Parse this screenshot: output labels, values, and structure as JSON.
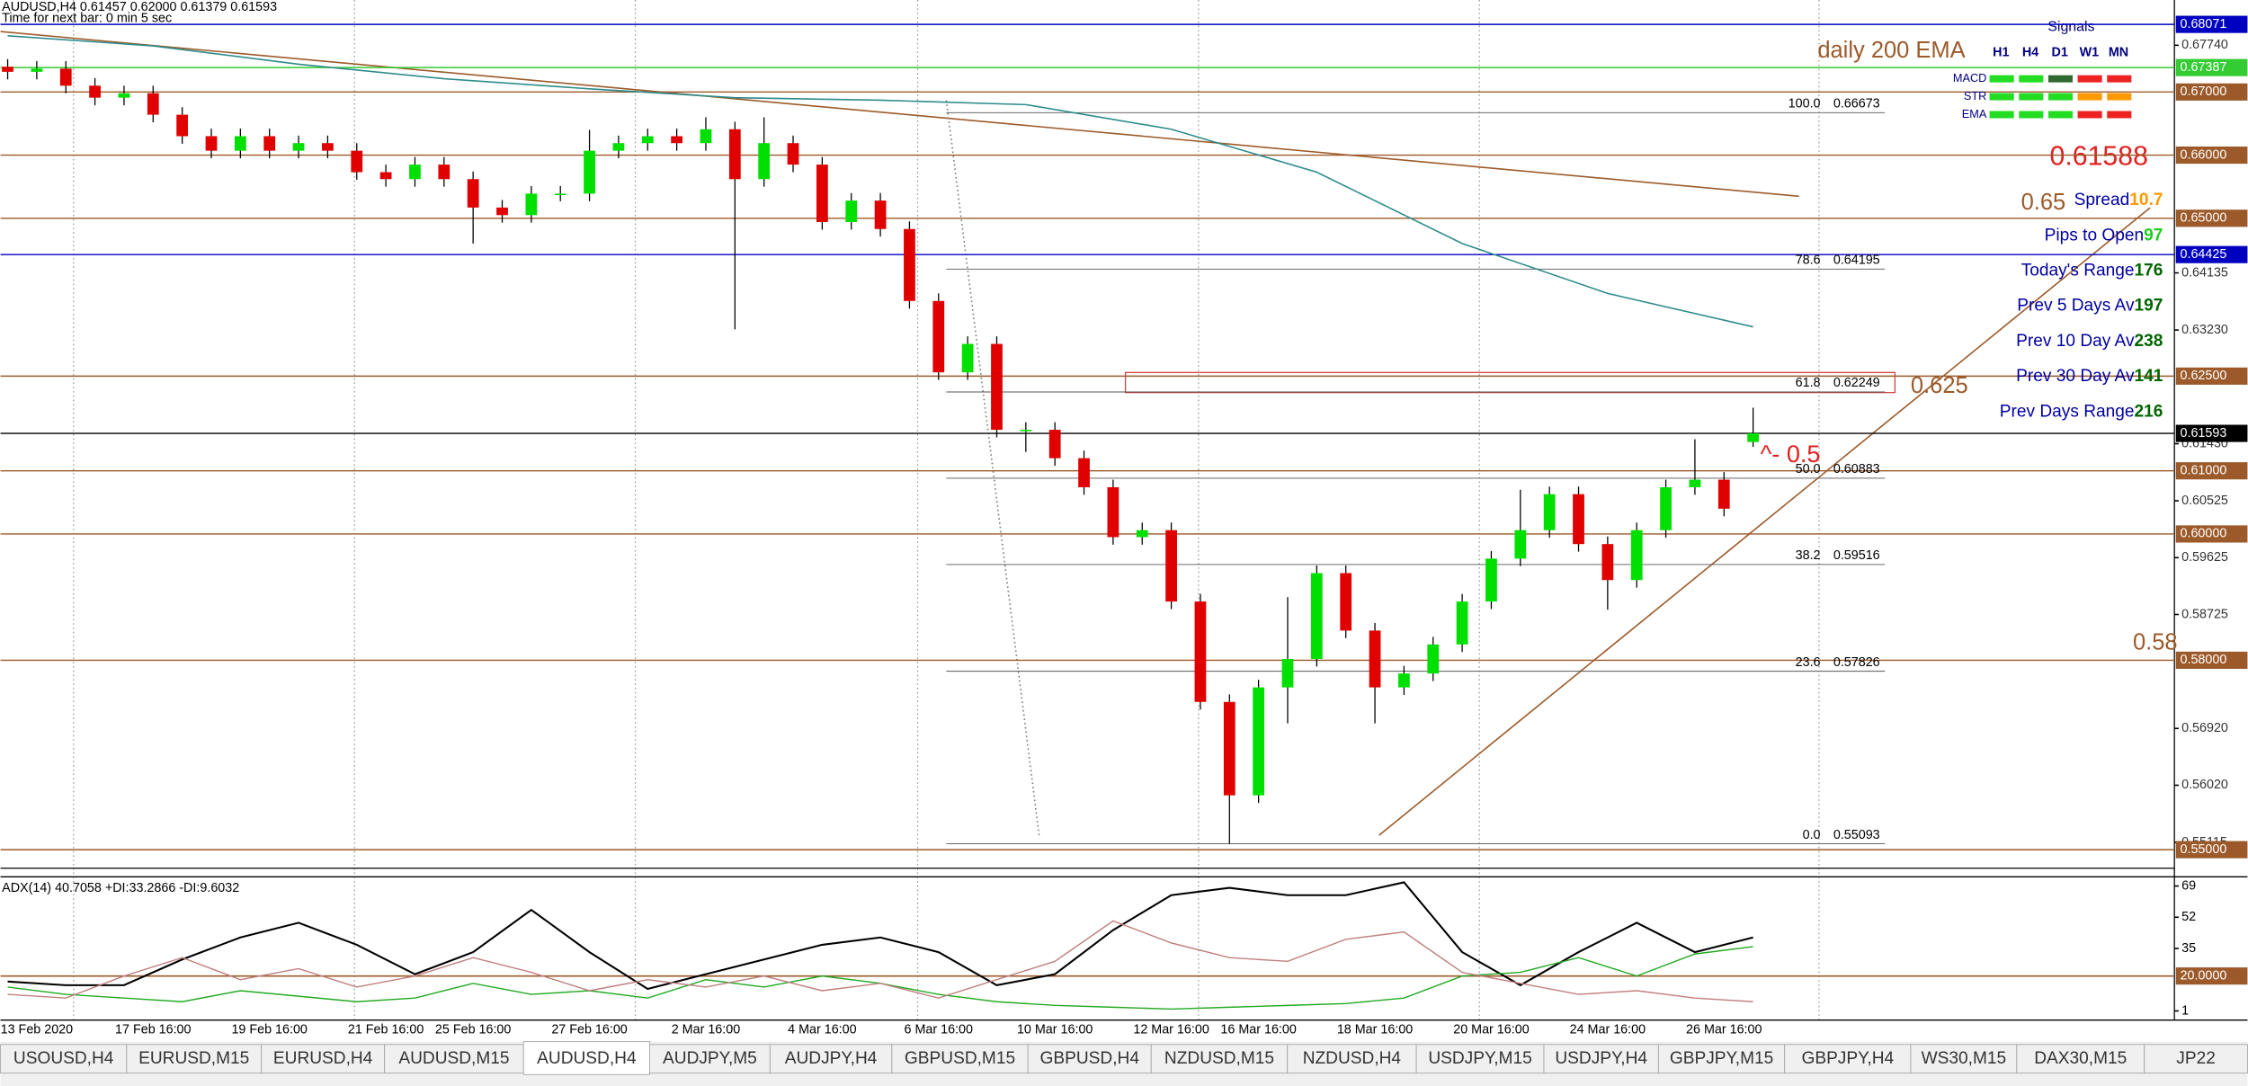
{
  "header": {
    "symbol_line": "AUDUSD,H4  0.61457 0.62000 0.61379 0.61593",
    "timer": "Time for next bar: 0 min 5 sec"
  },
  "chart_data": {
    "type": "candlestick",
    "up_color": "#00e000",
    "down_color": "#e00000",
    "categories": [
      null,
      "13 Feb 2020",
      null,
      null,
      null,
      "17 Feb 16:00",
      null,
      null,
      null,
      "19 Feb 16:00",
      null,
      null,
      null,
      "21 Feb 16:00",
      null,
      null,
      "25 Feb 16:00",
      null,
      null,
      null,
      "27 Feb 16:00",
      null,
      null,
      null,
      "2 Mar 16:00",
      null,
      null,
      null,
      "4 Mar 16:00",
      null,
      null,
      null,
      "6 Mar 16:00",
      null,
      null,
      null,
      "10 Mar 16:00",
      null,
      null,
      null,
      "12 Mar 16:00",
      null,
      null,
      "16 Mar 16:00",
      null,
      null,
      null,
      "18 Mar 16:00",
      null,
      null,
      null,
      "20 Mar 16:00",
      null,
      null,
      null,
      "24 Mar 16:00",
      null,
      null,
      null,
      "26 Mar 16:00",
      null
    ],
    "open": [
      0.674,
      0.6732,
      0.6737,
      0.671,
      0.6691,
      0.6698,
      0.6664,
      0.663,
      0.6607,
      0.663,
      0.6607,
      0.6619,
      0.6607,
      0.6573,
      0.6562,
      0.6585,
      0.6562,
      0.6517,
      0.6505,
      0.6539,
      0.6539,
      0.6607,
      0.6619,
      0.663,
      0.6619,
      0.6641,
      0.6562,
      0.6619,
      0.6585,
      0.6494,
      0.6528,
      0.6483,
      0.6369,
      0.6256,
      0.6301,
      0.6165,
      0.6165,
      0.612,
      0.6074,
      0.5995,
      0.6006,
      0.5893,
      0.5734,
      0.5586,
      0.5757,
      0.5802,
      0.5938,
      0.5847,
      0.5757,
      0.5779,
      0.5825,
      0.5893,
      0.5961,
      0.6006,
      0.6063,
      0.5984,
      0.5927,
      0.6006,
      0.6074,
      0.6086,
      0.61457
    ],
    "high": [
      0.6752,
      0.6749,
      0.6749,
      0.6722,
      0.671,
      0.671,
      0.6676,
      0.6642,
      0.6642,
      0.6642,
      0.6631,
      0.6631,
      0.6619,
      0.6585,
      0.6597,
      0.6597,
      0.6574,
      0.6529,
      0.6551,
      0.6551,
      0.664,
      0.6631,
      0.6642,
      0.6642,
      0.666,
      0.6653,
      0.666,
      0.6631,
      0.6597,
      0.654,
      0.654,
      0.6495,
      0.6381,
      0.6313,
      0.6313,
      0.6177,
      0.6177,
      0.6132,
      0.6086,
      0.6018,
      0.6018,
      0.5905,
      0.5746,
      0.5769,
      0.59,
      0.595,
      0.595,
      0.5859,
      0.5791,
      0.5837,
      0.5905,
      0.5973,
      0.607,
      0.6075,
      0.6075,
      0.5996,
      0.6018,
      0.6086,
      0.615,
      0.6098,
      0.62
    ],
    "low": [
      0.672,
      0.672,
      0.6698,
      0.6679,
      0.6679,
      0.6652,
      0.6618,
      0.6595,
      0.6595,
      0.6595,
      0.6595,
      0.6595,
      0.6561,
      0.655,
      0.655,
      0.655,
      0.646,
      0.6493,
      0.6493,
      0.6527,
      0.6527,
      0.6595,
      0.6607,
      0.6607,
      0.6607,
      0.6324,
      0.655,
      0.6573,
      0.6482,
      0.6482,
      0.6471,
      0.6357,
      0.6244,
      0.6244,
      0.6153,
      0.613,
      0.6108,
      0.6062,
      0.5983,
      0.5983,
      0.5881,
      0.5722,
      0.5509,
      0.5574,
      0.57,
      0.579,
      0.5835,
      0.57,
      0.5745,
      0.5767,
      0.5813,
      0.5881,
      0.5949,
      0.5994,
      0.5972,
      0.588,
      0.5915,
      0.5994,
      0.6062,
      0.6028,
      0.61379
    ],
    "close": [
      0.6732,
      0.6737,
      0.671,
      0.6691,
      0.6698,
      0.6664,
      0.663,
      0.6607,
      0.663,
      0.6607,
      0.6619,
      0.6607,
      0.6573,
      0.6562,
      0.6585,
      0.6562,
      0.6517,
      0.6505,
      0.6539,
      0.6539,
      0.6607,
      0.6619,
      0.663,
      0.6619,
      0.6641,
      0.6562,
      0.6619,
      0.6585,
      0.6494,
      0.6528,
      0.6483,
      0.6369,
      0.6256,
      0.6301,
      0.6165,
      0.6165,
      0.612,
      0.6074,
      0.5995,
      0.6006,
      0.5893,
      0.5734,
      0.5586,
      0.5757,
      0.5802,
      0.5938,
      0.5847,
      0.5757,
      0.5779,
      0.5825,
      0.5893,
      0.5961,
      0.6006,
      0.6063,
      0.5984,
      0.5927,
      0.6006,
      0.6074,
      0.6086,
      0.604,
      0.61593
    ],
    "ema": {
      "color": "#2e8b8b",
      "values": [
        0.6789,
        0.6773,
        0.6744,
        0.6721,
        0.6705,
        0.6691,
        0.6687,
        0.668,
        0.6641,
        0.6573,
        0.646,
        0.6381,
        0.6328
      ]
    },
    "ylim": [
      0.54842,
      0.68457
    ],
    "yticks": [
      {
        "value": 0.6774,
        "label": "0.67740"
      },
      {
        "value": 0.64135,
        "label": "0.64135"
      },
      {
        "value": 0.6323,
        "label": "0.63230"
      },
      {
        "value": 0.6143,
        "label": "0.61430"
      },
      {
        "value": 0.60525,
        "label": "0.60525"
      },
      {
        "value": 0.59625,
        "label": "0.59625"
      },
      {
        "value": 0.58725,
        "label": "0.58725"
      },
      {
        "value": 0.5692,
        "label": "0.56920"
      },
      {
        "value": 0.5602,
        "label": "0.56020"
      },
      {
        "value": 0.55115,
        "label": "0.55115"
      }
    ],
    "levels": [
      {
        "price": 0.68071,
        "color": "#0000c0"
      },
      {
        "price": 0.67387,
        "color": "#33cc33"
      },
      {
        "price": {
          "value": 0.67,
          "label": "0.67000"
        },
        "color": "#9c5a2a"
      },
      {
        "price": {
          "value": 0.66,
          "label": "0.66000"
        },
        "color": "#9c5a2a"
      },
      {
        "price": {
          "value": 0.65,
          "label": "0.65000"
        },
        "color": "#9c5a2a"
      },
      {
        "price": 0.64425,
        "color": "#0000c0"
      },
      {
        "price": {
          "value": 0.625,
          "label": "0.62500"
        },
        "color": "#9c5a2a"
      },
      {
        "price": 0.61593,
        "color": "#000000"
      },
      {
        "price": {
          "value": 0.61,
          "label": "0.61000"
        },
        "color": "#9c5a2a"
      },
      {
        "price": {
          "value": 0.6,
          "label": "0.60000"
        },
        "color": "#9c5a2a"
      },
      {
        "price": {
          "value": 0.58,
          "label": "0.58000"
        },
        "color": "#9c5a2a"
      },
      {
        "price": {
          "value": 0.55,
          "label": "0.55000"
        },
        "color": "#9c5a2a"
      }
    ],
    "fib": [
      {
        "level": {
          "value": 100,
          "label": "100.0"
        },
        "price": 0.66673
      },
      {
        "level": 78.6,
        "price": 0.64195
      },
      {
        "level": 61.8,
        "price": 0.62249
      },
      {
        "level": {
          "value": 50,
          "label": "50.0"
        },
        "price": 0.60883
      },
      {
        "level": 38.2,
        "price": 0.59516
      },
      {
        "level": 23.6,
        "price": 0.57826
      },
      {
        "level": {
          "value": 0,
          "label": "0.0"
        },
        "price": 0.55093
      }
    ],
    "annotations": {
      "ema_note": "daily 200 EMA",
      "price_note": "0.61588",
      "note_065": "0.65",
      "note_0625": "0.625",
      "note_058": "0.58",
      "note_05": "^- 0.5"
    }
  },
  "adx": {
    "title": "ADX(14) 40.7058 +DI:33.2866 -DI:9.6032",
    "ylim": [
      -4,
      74
    ],
    "yticks": [
      69,
      52,
      35,
      1
    ],
    "level": {
      "value": 20,
      "label": "20.0000"
    },
    "series": [
      {
        "name": "ADX",
        "color": "#000000",
        "values": [
          17,
          15,
          15,
          29,
          41,
          49,
          37,
          21,
          33,
          56,
          33,
          13,
          21,
          29,
          37,
          41,
          33,
          15,
          21,
          45,
          64,
          68,
          64,
          64,
          71,
          33,
          15,
          33,
          49,
          33,
          41
        ]
      },
      {
        "name": "+DI",
        "color": "#22aa22",
        "values": [
          14,
          10,
          8,
          6,
          12,
          9,
          6,
          8,
          16,
          10,
          12,
          8,
          18,
          14,
          20,
          16,
          10,
          6,
          4,
          3,
          2,
          3,
          4,
          5,
          8,
          20,
          22,
          30,
          20,
          32,
          36
        ]
      },
      {
        "name": "-DI",
        "color": "#c08080",
        "values": [
          10,
          8,
          20,
          30,
          18,
          24,
          14,
          20,
          30,
          22,
          12,
          18,
          14,
          20,
          12,
          16,
          8,
          18,
          28,
          50,
          38,
          30,
          28,
          40,
          44,
          22,
          16,
          10,
          12,
          8,
          6
        ]
      }
    ]
  },
  "signals": {
    "title": "Signals",
    "columns": [
      "H1",
      "H4",
      "D1",
      "W1",
      "MN"
    ],
    "rows": [
      {
        "name": "MACD",
        "colors": [
          "#22dd22",
          "#22dd22",
          "#2f6b2f",
          "#ee2222",
          "#ee2222"
        ]
      },
      {
        "name": "STR",
        "colors": [
          "#22dd22",
          "#22dd22",
          "#22dd22",
          "#ff9900",
          "#ff9900"
        ]
      },
      {
        "name": "EMA",
        "colors": [
          "#22dd22",
          "#22dd22",
          "#22dd22",
          "#ee2222",
          "#ee2222"
        ]
      }
    ]
  },
  "info": [
    {
      "label": "Spread",
      "value": "10.7",
      "value_color": "#ff9900"
    },
    {
      "label": "Pips to Open",
      "value": "97",
      "value_color": "#22cc22"
    },
    {
      "label": "Today's Range",
      "value": "176",
      "value_color": "#006600"
    },
    {
      "label": "Prev 5 Days Av",
      "value": "197",
      "value_color": "#006600"
    },
    {
      "label": "Prev 10 Day Av",
      "value": "238",
      "value_color": "#006600"
    },
    {
      "label": "Prev 30 Day Av",
      "value": "141",
      "value_color": "#006600"
    },
    {
      "label": "Prev Days Range",
      "value": "216",
      "value_color": "#006600"
    }
  ],
  "tabs": {
    "selected": 4,
    "items": [
      "USOUSD,H4",
      "EURUSD,M15",
      "EURUSD,H4",
      "AUDUSD,M15",
      "AUDUSD,H4",
      "AUDJPY,M5",
      "AUDJPY,H4",
      "GBPUSD,M15",
      "GBPUSD,H4",
      "NZDUSD,M15",
      "NZDUSD,H4",
      "USDJPY,M15",
      "USDJPY,H4",
      "GBPJPY,M15",
      "GBPJPY,H4",
      "WS30,M15",
      "DAX30,M15",
      "JP22"
    ]
  }
}
